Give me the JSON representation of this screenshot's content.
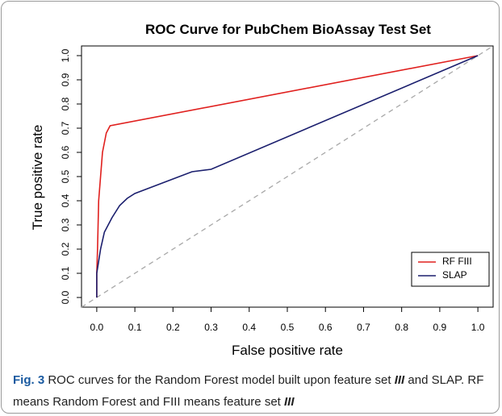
{
  "chart_data": {
    "type": "line",
    "title": "ROC Curve for PubChem BioAssay Test Set",
    "x_label": "False positive rate",
    "y_label": "True positive rate",
    "xlim": [
      -0.04,
      1.04
    ],
    "ylim": [
      -0.04,
      1.04
    ],
    "xticks": [
      {
        "value": 0,
        "label": "0.0"
      },
      0.1,
      0.2,
      0.3,
      0.4,
      0.5,
      0.6,
      0.7,
      0.8,
      0.9,
      {
        "value": 1,
        "label": "1.0"
      }
    ],
    "yticks": [
      {
        "value": 0,
        "label": "0.0"
      },
      0.1,
      0.2,
      0.3,
      0.4,
      0.5,
      0.6,
      0.7,
      0.8,
      0.9,
      {
        "value": 1,
        "label": "1.0"
      }
    ],
    "legend": "bottom-right",
    "series": [
      {
        "name": "RF FIII",
        "color": "#e0201e",
        "x": [
          0,
          0,
          0.002,
          0.005,
          0.01,
          0.015,
          0.025,
          0.035,
          1
        ],
        "values": [
          0,
          0.1,
          0.2,
          0.4,
          0.5,
          0.6,
          0.68,
          0.71,
          1
        ]
      },
      {
        "name": "SLAP",
        "color": "#1b1f6e",
        "x": [
          0,
          0,
          0.005,
          0.01,
          0.02,
          0.04,
          0.06,
          0.08,
          0.1,
          0.15,
          0.2,
          0.25,
          0.3,
          1
        ],
        "values": [
          0,
          0.1,
          0.15,
          0.2,
          0.27,
          0.33,
          0.38,
          0.41,
          0.43,
          0.46,
          0.49,
          0.52,
          0.53,
          1
        ]
      }
    ]
  },
  "caption": {
    "label": "Fig. 3",
    "parts": [
      "ROC curves for the Random Forest model built upon feature set",
      "III",
      "and SLAP. RF means Random Forest and FIII means feature set",
      "III"
    ]
  }
}
